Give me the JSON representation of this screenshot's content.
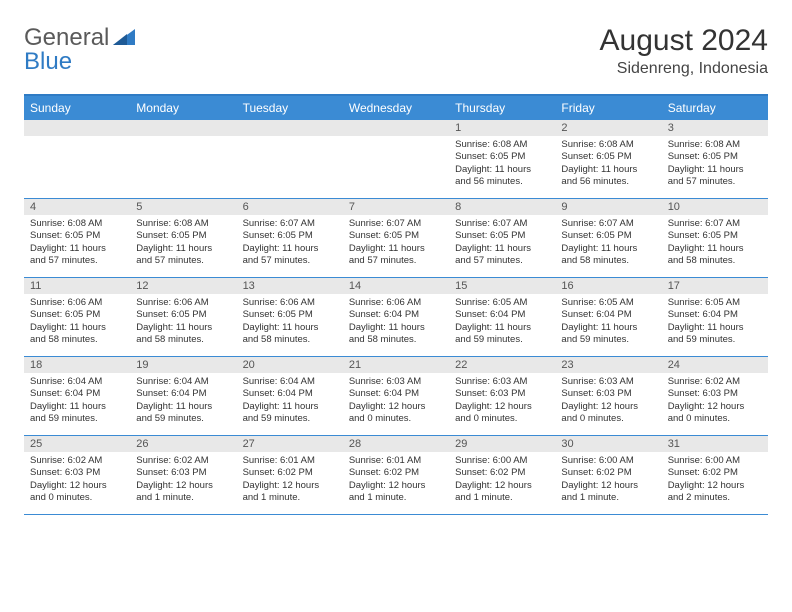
{
  "logo": {
    "text1": "General",
    "text2": "Blue"
  },
  "title": "August 2024",
  "location": "Sidenreng, Indonesia",
  "colors": {
    "header_blue": "#3b8bd4",
    "border_blue": "#2f7bc4",
    "daynum_bg": "#e8e8e8",
    "text": "#333333",
    "logo_gray": "#5a5a5a"
  },
  "weekdays": [
    "Sunday",
    "Monday",
    "Tuesday",
    "Wednesday",
    "Thursday",
    "Friday",
    "Saturday"
  ],
  "weeks": [
    [
      {
        "n": "",
        "sunrise": "",
        "sunset": "",
        "day": ""
      },
      {
        "n": "",
        "sunrise": "",
        "sunset": "",
        "day": ""
      },
      {
        "n": "",
        "sunrise": "",
        "sunset": "",
        "day": ""
      },
      {
        "n": "",
        "sunrise": "",
        "sunset": "",
        "day": ""
      },
      {
        "n": "1",
        "sunrise": "Sunrise: 6:08 AM",
        "sunset": "Sunset: 6:05 PM",
        "day": "Daylight: 11 hours and 56 minutes."
      },
      {
        "n": "2",
        "sunrise": "Sunrise: 6:08 AM",
        "sunset": "Sunset: 6:05 PM",
        "day": "Daylight: 11 hours and 56 minutes."
      },
      {
        "n": "3",
        "sunrise": "Sunrise: 6:08 AM",
        "sunset": "Sunset: 6:05 PM",
        "day": "Daylight: 11 hours and 57 minutes."
      }
    ],
    [
      {
        "n": "4",
        "sunrise": "Sunrise: 6:08 AM",
        "sunset": "Sunset: 6:05 PM",
        "day": "Daylight: 11 hours and 57 minutes."
      },
      {
        "n": "5",
        "sunrise": "Sunrise: 6:08 AM",
        "sunset": "Sunset: 6:05 PM",
        "day": "Daylight: 11 hours and 57 minutes."
      },
      {
        "n": "6",
        "sunrise": "Sunrise: 6:07 AM",
        "sunset": "Sunset: 6:05 PM",
        "day": "Daylight: 11 hours and 57 minutes."
      },
      {
        "n": "7",
        "sunrise": "Sunrise: 6:07 AM",
        "sunset": "Sunset: 6:05 PM",
        "day": "Daylight: 11 hours and 57 minutes."
      },
      {
        "n": "8",
        "sunrise": "Sunrise: 6:07 AM",
        "sunset": "Sunset: 6:05 PM",
        "day": "Daylight: 11 hours and 57 minutes."
      },
      {
        "n": "9",
        "sunrise": "Sunrise: 6:07 AM",
        "sunset": "Sunset: 6:05 PM",
        "day": "Daylight: 11 hours and 58 minutes."
      },
      {
        "n": "10",
        "sunrise": "Sunrise: 6:07 AM",
        "sunset": "Sunset: 6:05 PM",
        "day": "Daylight: 11 hours and 58 minutes."
      }
    ],
    [
      {
        "n": "11",
        "sunrise": "Sunrise: 6:06 AM",
        "sunset": "Sunset: 6:05 PM",
        "day": "Daylight: 11 hours and 58 minutes."
      },
      {
        "n": "12",
        "sunrise": "Sunrise: 6:06 AM",
        "sunset": "Sunset: 6:05 PM",
        "day": "Daylight: 11 hours and 58 minutes."
      },
      {
        "n": "13",
        "sunrise": "Sunrise: 6:06 AM",
        "sunset": "Sunset: 6:05 PM",
        "day": "Daylight: 11 hours and 58 minutes."
      },
      {
        "n": "14",
        "sunrise": "Sunrise: 6:06 AM",
        "sunset": "Sunset: 6:04 PM",
        "day": "Daylight: 11 hours and 58 minutes."
      },
      {
        "n": "15",
        "sunrise": "Sunrise: 6:05 AM",
        "sunset": "Sunset: 6:04 PM",
        "day": "Daylight: 11 hours and 59 minutes."
      },
      {
        "n": "16",
        "sunrise": "Sunrise: 6:05 AM",
        "sunset": "Sunset: 6:04 PM",
        "day": "Daylight: 11 hours and 59 minutes."
      },
      {
        "n": "17",
        "sunrise": "Sunrise: 6:05 AM",
        "sunset": "Sunset: 6:04 PM",
        "day": "Daylight: 11 hours and 59 minutes."
      }
    ],
    [
      {
        "n": "18",
        "sunrise": "Sunrise: 6:04 AM",
        "sunset": "Sunset: 6:04 PM",
        "day": "Daylight: 11 hours and 59 minutes."
      },
      {
        "n": "19",
        "sunrise": "Sunrise: 6:04 AM",
        "sunset": "Sunset: 6:04 PM",
        "day": "Daylight: 11 hours and 59 minutes."
      },
      {
        "n": "20",
        "sunrise": "Sunrise: 6:04 AM",
        "sunset": "Sunset: 6:04 PM",
        "day": "Daylight: 11 hours and 59 minutes."
      },
      {
        "n": "21",
        "sunrise": "Sunrise: 6:03 AM",
        "sunset": "Sunset: 6:04 PM",
        "day": "Daylight: 12 hours and 0 minutes."
      },
      {
        "n": "22",
        "sunrise": "Sunrise: 6:03 AM",
        "sunset": "Sunset: 6:03 PM",
        "day": "Daylight: 12 hours and 0 minutes."
      },
      {
        "n": "23",
        "sunrise": "Sunrise: 6:03 AM",
        "sunset": "Sunset: 6:03 PM",
        "day": "Daylight: 12 hours and 0 minutes."
      },
      {
        "n": "24",
        "sunrise": "Sunrise: 6:02 AM",
        "sunset": "Sunset: 6:03 PM",
        "day": "Daylight: 12 hours and 0 minutes."
      }
    ],
    [
      {
        "n": "25",
        "sunrise": "Sunrise: 6:02 AM",
        "sunset": "Sunset: 6:03 PM",
        "day": "Daylight: 12 hours and 0 minutes."
      },
      {
        "n": "26",
        "sunrise": "Sunrise: 6:02 AM",
        "sunset": "Sunset: 6:03 PM",
        "day": "Daylight: 12 hours and 1 minute."
      },
      {
        "n": "27",
        "sunrise": "Sunrise: 6:01 AM",
        "sunset": "Sunset: 6:02 PM",
        "day": "Daylight: 12 hours and 1 minute."
      },
      {
        "n": "28",
        "sunrise": "Sunrise: 6:01 AM",
        "sunset": "Sunset: 6:02 PM",
        "day": "Daylight: 12 hours and 1 minute."
      },
      {
        "n": "29",
        "sunrise": "Sunrise: 6:00 AM",
        "sunset": "Sunset: 6:02 PM",
        "day": "Daylight: 12 hours and 1 minute."
      },
      {
        "n": "30",
        "sunrise": "Sunrise: 6:00 AM",
        "sunset": "Sunset: 6:02 PM",
        "day": "Daylight: 12 hours and 1 minute."
      },
      {
        "n": "31",
        "sunrise": "Sunrise: 6:00 AM",
        "sunset": "Sunset: 6:02 PM",
        "day": "Daylight: 12 hours and 2 minutes."
      }
    ]
  ]
}
